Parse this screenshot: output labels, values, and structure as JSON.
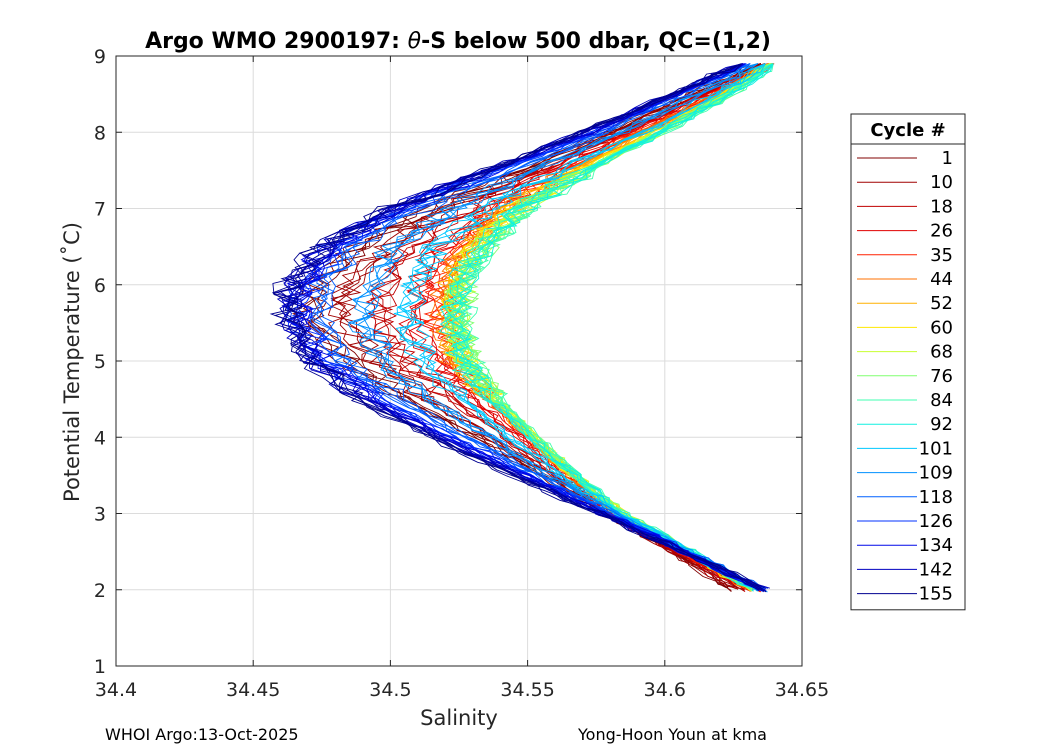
{
  "chart_data": {
    "type": "line",
    "title_prefix": "Argo WMO 2900197: ",
    "title_theta": "θ",
    "title_suffix": "-S below 500 dbar,  QC=(1,2)",
    "xlabel": "Salinity",
    "ylabel": "Potential Temperature (˚C)",
    "xlim": [
      34.4,
      34.65
    ],
    "ylim": [
      1,
      9
    ],
    "xticks": [
      34.4,
      34.45,
      34.5,
      34.55,
      34.6,
      34.65
    ],
    "xtick_labels": [
      "34.4",
      "34.45",
      "34.5",
      "34.55",
      "34.6",
      "34.65"
    ],
    "yticks": [
      1,
      2,
      3,
      4,
      5,
      6,
      7,
      8,
      9
    ],
    "ytick_labels": [
      "1",
      "2",
      "3",
      "4",
      "5",
      "6",
      "7",
      "8",
      "9"
    ],
    "grid": true,
    "legend": {
      "title": "Cycle #",
      "placement": "outside-right",
      "entries": [
        {
          "label": "1",
          "color": "#800000"
        },
        {
          "label": "10",
          "color": "#A00000"
        },
        {
          "label": "18",
          "color": "#C00000"
        },
        {
          "label": "26",
          "color": "#E00000"
        },
        {
          "label": "35",
          "color": "#FF2000"
        },
        {
          "label": "44",
          "color": "#FF7000"
        },
        {
          "label": "52",
          "color": "#FFB000"
        },
        {
          "label": "60",
          "color": "#FFE800"
        },
        {
          "label": "68",
          "color": "#C8FF30"
        },
        {
          "label": "76",
          "color": "#80FF70"
        },
        {
          "label": "84",
          "color": "#40FFB0"
        },
        {
          "label": "92",
          "color": "#10F0E0"
        },
        {
          "label": "101",
          "color": "#00C8FF"
        },
        {
          "label": "109",
          "color": "#0090FF"
        },
        {
          "label": "118",
          "color": "#0060FF"
        },
        {
          "label": "126",
          "color": "#0030FF"
        },
        {
          "label": "134",
          "color": "#0008E8"
        },
        {
          "label": "142",
          "color": "#0000C0"
        },
        {
          "label": "155",
          "color": "#000090"
        }
      ]
    },
    "series_template": {
      "theta": [
        2.0,
        2.5,
        3.0,
        3.5,
        4.0,
        4.5,
        5.0,
        5.5,
        6.0,
        6.5,
        7.0,
        7.5,
        8.0,
        8.5,
        8.9
      ],
      "salinity_by_cycle_group": [
        {
          "cycle_group": "1",
          "salinity": [
            34.625,
            34.602,
            34.578,
            34.555,
            34.532,
            34.505,
            34.485,
            34.47,
            34.472,
            34.488,
            34.515,
            34.548,
            34.58,
            34.61,
            34.635
          ]
        },
        {
          "cycle_group": "35",
          "salinity": [
            34.633,
            34.607,
            34.582,
            34.566,
            34.55,
            34.535,
            34.522,
            34.517,
            34.518,
            34.525,
            34.54,
            34.562,
            34.59,
            34.618,
            34.64
          ]
        },
        {
          "cycle_group": "60",
          "salinity": [
            34.632,
            34.608,
            34.584,
            34.567,
            34.552,
            34.538,
            34.527,
            34.524,
            34.525,
            34.532,
            34.546,
            34.57,
            34.597,
            34.622,
            34.638
          ]
        },
        {
          "cycle_group": "92",
          "salinity": [
            34.634,
            34.609,
            34.585,
            34.568,
            34.553,
            34.539,
            34.529,
            34.526,
            34.528,
            34.536,
            34.55,
            34.573,
            34.6,
            34.625,
            34.64
          ]
        },
        {
          "cycle_group": "118",
          "salinity": [
            34.636,
            34.608,
            34.58,
            34.552,
            34.525,
            34.498,
            34.478,
            34.468,
            34.47,
            34.48,
            34.505,
            34.54,
            34.575,
            34.605,
            34.63
          ]
        },
        {
          "cycle_group": "155",
          "salinity": [
            34.636,
            34.606,
            34.576,
            34.545,
            34.515,
            34.488,
            34.47,
            34.462,
            34.463,
            34.475,
            34.5,
            34.535,
            34.57,
            34.602,
            34.628
          ]
        }
      ]
    }
  },
  "footer": {
    "left": "WHOI Argo:13-Oct-2025",
    "right": "Yong-Hoon Youn at kma"
  }
}
